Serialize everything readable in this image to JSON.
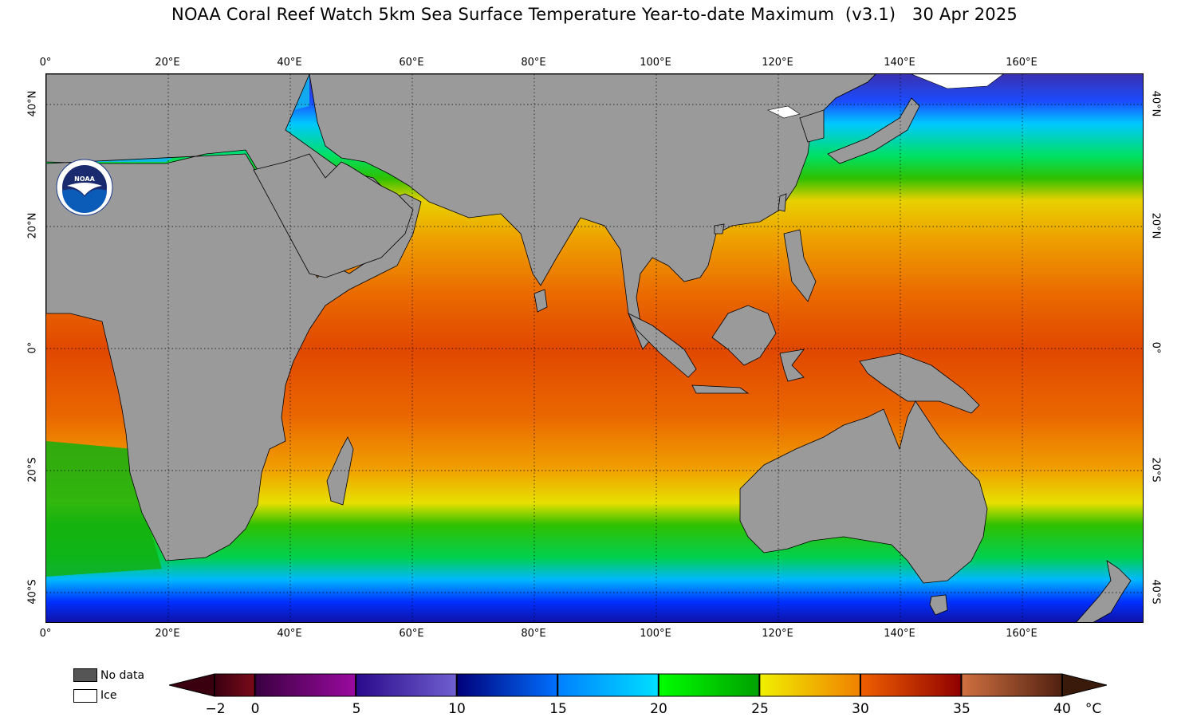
{
  "title": "NOAA Coral Reef Watch 5km Sea Surface Temperature Year-to-date Maximum  (v3.1)   30 Apr 2025",
  "map": {
    "lon_range": [
      0,
      180
    ],
    "lat_range": [
      -45,
      45
    ],
    "lon_ticks": [
      "0°",
      "20°E",
      "40°E",
      "60°E",
      "80°E",
      "100°E",
      "120°E",
      "140°E",
      "160°E"
    ],
    "lat_ticks": [
      "40°N",
      "20°N",
      "0°",
      "20°S",
      "40°S"
    ],
    "gridlines": true,
    "logo": "noaa-logo",
    "colors": {
      "land": "#9a9a9a",
      "frame": "#000000"
    }
  },
  "legend": {
    "no_data_label": "No data",
    "ice_label": "Ice",
    "no_data_color": "#555555",
    "ice_color": "#ffffff"
  },
  "colorbar": {
    "labels": [
      "−2",
      "0",
      "5",
      "10",
      "15",
      "20",
      "25",
      "30",
      "35",
      "40"
    ],
    "unit": "°C",
    "range": [
      -2,
      40
    ],
    "stops": [
      {
        "v": -2,
        "c": "#3a0010"
      },
      {
        "v": 0,
        "c": "#7a0a1a"
      },
      {
        "v": 0.01,
        "c": "#3a0040"
      },
      {
        "v": 5,
        "c": "#9a0aa0"
      },
      {
        "v": 5.01,
        "c": "#2a0a8a"
      },
      {
        "v": 10,
        "c": "#7060d0"
      },
      {
        "v": 10.01,
        "c": "#00007a"
      },
      {
        "v": 15,
        "c": "#0070ff"
      },
      {
        "v": 15.01,
        "c": "#0080ff"
      },
      {
        "v": 20,
        "c": "#00e0ff"
      },
      {
        "v": 20.01,
        "c": "#00ff00"
      },
      {
        "v": 25,
        "c": "#00a000"
      },
      {
        "v": 25.01,
        "c": "#f0f000"
      },
      {
        "v": 30,
        "c": "#f08000"
      },
      {
        "v": 30.01,
        "c": "#f06000"
      },
      {
        "v": 35,
        "c": "#900000"
      },
      {
        "v": 35.01,
        "c": "#d07040"
      },
      {
        "v": 40,
        "c": "#502010"
      }
    ]
  }
}
